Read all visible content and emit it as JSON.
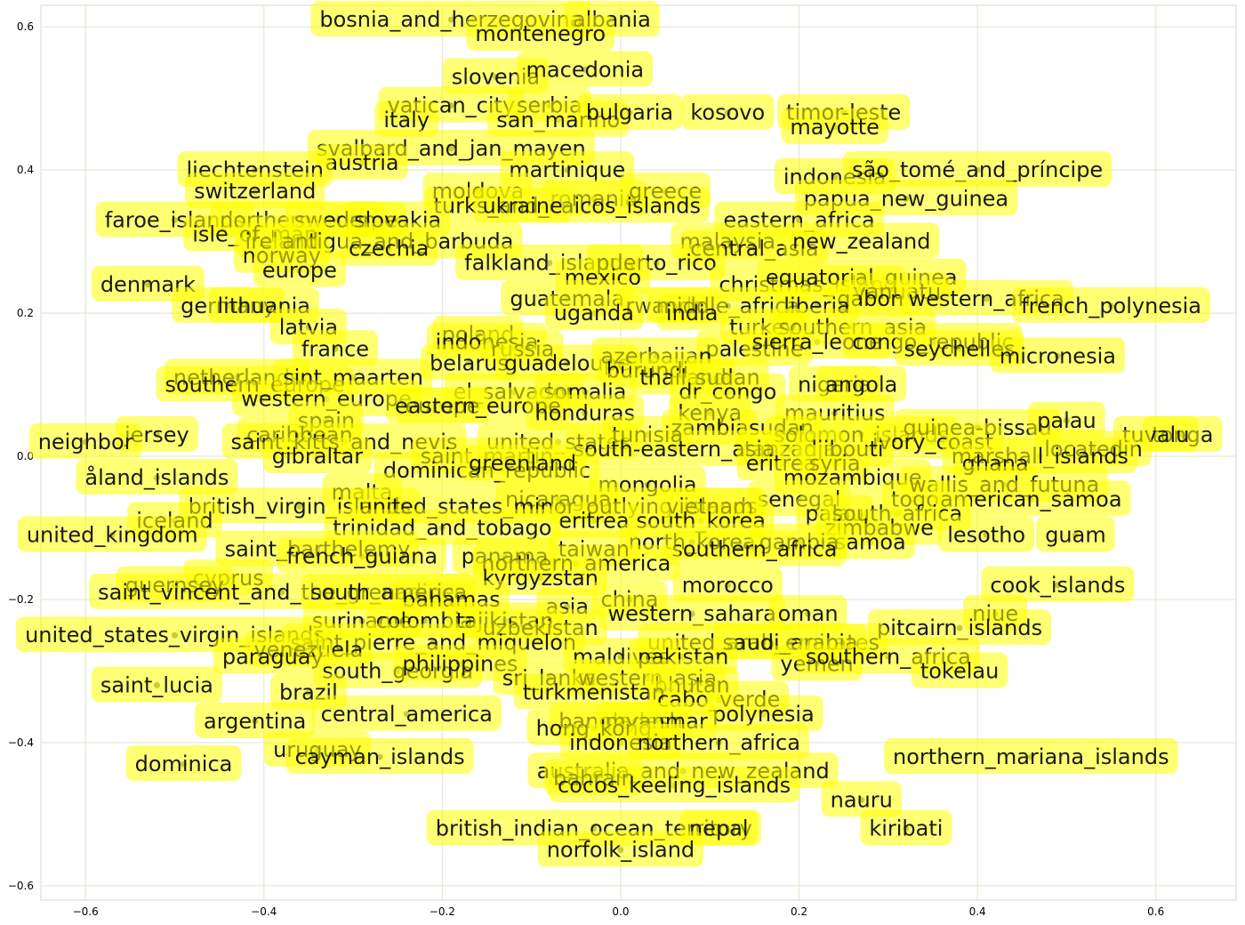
{
  "chart_data": {
    "type": "scatter",
    "title": "",
    "xlabel": "",
    "ylabel": "",
    "xlim": [
      -0.65,
      0.69
    ],
    "ylim": [
      -0.62,
      0.63
    ],
    "grid": true,
    "x_ticks": [
      "−0.6",
      "−0.4",
      "−0.2",
      "0.0",
      "0.2",
      "0.4",
      "0.6"
    ],
    "x_tick_values": [
      -0.6,
      -0.4,
      -0.2,
      0.0,
      0.2,
      0.4,
      0.6
    ],
    "y_ticks": [
      "0.6",
      "0.4",
      "0.2",
      "0.0",
      "−0.2",
      "−0.4",
      "−0.6"
    ],
    "y_tick_values": [
      0.6,
      0.4,
      0.2,
      0.0,
      -0.2,
      -0.4,
      -0.6
    ],
    "colors": {
      "label_box": "#ffff00",
      "point": "#5c5c3a",
      "grid": "#e3e3cf"
    },
    "points": [
      {
        "label": "bosnia_and_herzegovina",
        "x": -0.19,
        "y": 0.61
      },
      {
        "label": "albania",
        "x": -0.01,
        "y": 0.61
      },
      {
        "label": "montenegro",
        "x": -0.09,
        "y": 0.59
      },
      {
        "label": "slovenia",
        "x": -0.14,
        "y": 0.53
      },
      {
        "label": "macedonia",
        "x": -0.04,
        "y": 0.54
      },
      {
        "label": "vatican_city",
        "x": -0.19,
        "y": 0.49
      },
      {
        "label": "italy",
        "x": -0.24,
        "y": 0.47
      },
      {
        "label": "serbia",
        "x": -0.08,
        "y": 0.49
      },
      {
        "label": "san_marino",
        "x": -0.07,
        "y": 0.47
      },
      {
        "label": "bulgaria",
        "x": 0.01,
        "y": 0.48
      },
      {
        "label": "kosovo",
        "x": 0.12,
        "y": 0.48
      },
      {
        "label": "timor-leste",
        "x": 0.25,
        "y": 0.48
      },
      {
        "label": "mayotte",
        "x": 0.24,
        "y": 0.46
      },
      {
        "label": "svalbard_and_jan_mayen",
        "x": -0.19,
        "y": 0.43
      },
      {
        "label": "austria",
        "x": -0.29,
        "y": 0.41
      },
      {
        "label": "liechtenstein",
        "x": -0.41,
        "y": 0.4
      },
      {
        "label": "martinique",
        "x": -0.06,
        "y": 0.4
      },
      {
        "label": "switzerland",
        "x": -0.41,
        "y": 0.37
      },
      {
        "label": "moldova",
        "x": -0.16,
        "y": 0.37
      },
      {
        "label": "romania",
        "x": -0.03,
        "y": 0.36
      },
      {
        "label": "greece",
        "x": 0.05,
        "y": 0.37
      },
      {
        "label": "indonesia",
        "x": 0.24,
        "y": 0.39
      },
      {
        "label": "são_tomé_and_príncipe",
        "x": 0.4,
        "y": 0.4
      },
      {
        "label": "papua_new_guinea",
        "x": 0.32,
        "y": 0.36
      },
      {
        "label": "turks_and_caicos_islands",
        "x": -0.06,
        "y": 0.35
      },
      {
        "label": "ukraine",
        "x": -0.11,
        "y": 0.35
      },
      {
        "label": "faroe_islands",
        "x": -0.5,
        "y": 0.33
      },
      {
        "label": "northern_europe",
        "x": -0.35,
        "y": 0.33
      },
      {
        "label": "sweden",
        "x": -0.32,
        "y": 0.33
      },
      {
        "label": "slovakia",
        "x": -0.25,
        "y": 0.33
      },
      {
        "label": "eastern_africa",
        "x": 0.2,
        "y": 0.33
      },
      {
        "label": "isle_of_man",
        "x": -0.41,
        "y": 0.31
      },
      {
        "label": "ireland",
        "x": -0.38,
        "y": 0.3
      },
      {
        "label": "antigua_and_barbuda",
        "x": -0.25,
        "y": 0.3
      },
      {
        "label": "czechia",
        "x": -0.26,
        "y": 0.29
      },
      {
        "label": "malaysia",
        "x": 0.12,
        "y": 0.3
      },
      {
        "label": "central_asia",
        "x": 0.15,
        "y": 0.29
      },
      {
        "label": "new_zealand",
        "x": 0.27,
        "y": 0.3
      },
      {
        "label": "norway",
        "x": -0.38,
        "y": 0.28
      },
      {
        "label": "europe",
        "x": -0.36,
        "y": 0.26
      },
      {
        "label": "falkland_islands",
        "x": -0.08,
        "y": 0.27
      },
      {
        "label": "puerto_rico",
        "x": 0.04,
        "y": 0.27
      },
      {
        "label": "mexico",
        "x": -0.02,
        "y": 0.25
      },
      {
        "label": "denmark",
        "x": -0.53,
        "y": 0.24
      },
      {
        "label": "christmas_island",
        "x": 0.21,
        "y": 0.24
      },
      {
        "label": "equatorial_guinea",
        "x": 0.27,
        "y": 0.25
      },
      {
        "label": "vanuatu",
        "x": 0.31,
        "y": 0.23
      },
      {
        "label": "gabon",
        "x": 0.28,
        "y": 0.22
      },
      {
        "label": "western_africa",
        "x": 0.41,
        "y": 0.22
      },
      {
        "label": "french_polynesia",
        "x": 0.55,
        "y": 0.21
      },
      {
        "label": "germany",
        "x": -0.44,
        "y": 0.21
      },
      {
        "label": "lithuania",
        "x": -0.4,
        "y": 0.21
      },
      {
        "label": "guatemala",
        "x": -0.06,
        "y": 0.22
      },
      {
        "label": "rwanda",
        "x": 0.05,
        "y": 0.21
      },
      {
        "label": "middle_africa",
        "x": 0.12,
        "y": 0.21
      },
      {
        "label": "liberia",
        "x": 0.22,
        "y": 0.21
      },
      {
        "label": "uganda",
        "x": -0.03,
        "y": 0.2
      },
      {
        "label": "india",
        "x": 0.08,
        "y": 0.2
      },
      {
        "label": "turkey",
        "x": 0.16,
        "y": 0.18
      },
      {
        "label": "southern_asia",
        "x": 0.26,
        "y": 0.18
      },
      {
        "label": "latvia",
        "x": -0.35,
        "y": 0.18
      },
      {
        "label": "poland",
        "x": -0.16,
        "y": 0.17
      },
      {
        "label": "indonesia",
        "x": -0.15,
        "y": 0.16
      },
      {
        "label": "russia",
        "x": -0.11,
        "y": 0.15
      },
      {
        "label": "palestine",
        "x": 0.15,
        "y": 0.15
      },
      {
        "label": "sierra_leone",
        "x": 0.22,
        "y": 0.16
      },
      {
        "label": "congo_republic",
        "x": 0.35,
        "y": 0.16
      },
      {
        "label": "france",
        "x": -0.32,
        "y": 0.15
      },
      {
        "label": "seychelles",
        "x": 0.38,
        "y": 0.15
      },
      {
        "label": "micronesia",
        "x": 0.49,
        "y": 0.14
      },
      {
        "label": "belarus",
        "x": -0.17,
        "y": 0.13
      },
      {
        "label": "guadeloupe",
        "x": -0.06,
        "y": 0.13
      },
      {
        "label": "azerbaijan",
        "x": 0.04,
        "y": 0.14
      },
      {
        "label": "burundi",
        "x": 0.03,
        "y": 0.12
      },
      {
        "label": "thailand",
        "x": 0.07,
        "y": 0.11
      },
      {
        "label": "sudan",
        "x": 0.12,
        "y": 0.11
      },
      {
        "label": "netherlands",
        "x": -0.43,
        "y": 0.11
      },
      {
        "label": "southern_europe",
        "x": -0.41,
        "y": 0.1
      },
      {
        "label": "sint_maarten",
        "x": -0.3,
        "y": 0.11
      },
      {
        "label": "el_salvador",
        "x": -0.12,
        "y": 0.09
      },
      {
        "label": "somalia",
        "x": -0.04,
        "y": 0.09
      },
      {
        "label": "dr_congo",
        "x": 0.12,
        "y": 0.09
      },
      {
        "label": "nigeria",
        "x": 0.24,
        "y": 0.1
      },
      {
        "label": "angola",
        "x": 0.27,
        "y": 0.1
      },
      {
        "label": "western_europe",
        "x": -0.33,
        "y": 0.08
      },
      {
        "label": "europe",
        "x": -0.2,
        "y": 0.07
      },
      {
        "label": "eastern_europe",
        "x": -0.16,
        "y": 0.07
      },
      {
        "label": "honduras",
        "x": -0.04,
        "y": 0.06
      },
      {
        "label": "kenya",
        "x": 0.1,
        "y": 0.06
      },
      {
        "label": "mauritius",
        "x": 0.24,
        "y": 0.06
      },
      {
        "label": "spain",
        "x": -0.33,
        "y": 0.05
      },
      {
        "label": "zambia",
        "x": 0.1,
        "y": 0.04
      },
      {
        "label": "sudan",
        "x": 0.18,
        "y": 0.04
      },
      {
        "label": "solomon_islands",
        "x": 0.27,
        "y": 0.03
      },
      {
        "label": "guinea-bissau",
        "x": 0.4,
        "y": 0.04
      },
      {
        "label": "palau",
        "x": 0.5,
        "y": 0.05
      },
      {
        "label": "tonga",
        "x": 0.63,
        "y": 0.03
      },
      {
        "label": "tuvalu",
        "x": 0.6,
        "y": 0.03
      },
      {
        "label": "jersey",
        "x": -0.52,
        "y": 0.03
      },
      {
        "label": "caribbean",
        "x": -0.36,
        "y": 0.03
      },
      {
        "label": "saint_kitts_and_nevis",
        "x": -0.31,
        "y": 0.02
      },
      {
        "label": "united_states",
        "x": -0.07,
        "y": 0.02
      },
      {
        "label": "tunisia",
        "x": 0.03,
        "y": 0.03
      },
      {
        "label": "tanzania",
        "x": 0.19,
        "y": 0.01
      },
      {
        "label": "ivory_coast",
        "x": 0.35,
        "y": 0.02
      },
      {
        "label": "neighbor",
        "x": -0.6,
        "y": 0.02
      },
      {
        "label": "gibraltar",
        "x": -0.34,
        "y": 0.0
      },
      {
        "label": "saint_martin",
        "x": -0.15,
        "y": 0.0
      },
      {
        "label": "south-eastern_asia",
        "x": 0.06,
        "y": 0.01
      },
      {
        "label": "djibouti",
        "x": 0.25,
        "y": 0.01
      },
      {
        "label": "locatedin",
        "x": 0.53,
        "y": 0.01
      },
      {
        "label": "marshall_islands",
        "x": 0.47,
        "y": 0.0
      },
      {
        "label": "åland_islands",
        "x": -0.52,
        "y": -0.03
      },
      {
        "label": "dominican_republic",
        "x": -0.15,
        "y": -0.02
      },
      {
        "label": "greenland",
        "x": -0.11,
        "y": -0.01
      },
      {
        "label": "eritrea",
        "x": 0.18,
        "y": -0.01
      },
      {
        "label": "syria",
        "x": 0.24,
        "y": -0.01
      },
      {
        "label": "mozambique",
        "x": 0.26,
        "y": -0.03
      },
      {
        "label": "ghana",
        "x": 0.42,
        "y": -0.01
      },
      {
        "label": "mongolia",
        "x": 0.03,
        "y": -0.04
      },
      {
        "label": "wallis_and_futuna",
        "x": 0.43,
        "y": -0.04
      },
      {
        "label": "malta",
        "x": -0.29,
        "y": -0.05
      },
      {
        "label": "nicaragua",
        "x": -0.07,
        "y": -0.06
      },
      {
        "label": "senegal",
        "x": 0.2,
        "y": -0.06
      },
      {
        "label": "togo",
        "x": 0.33,
        "y": -0.06
      },
      {
        "label": "american_samoa",
        "x": 0.46,
        "y": -0.06
      },
      {
        "label": "british_virgin_islands",
        "x": -0.36,
        "y": -0.07
      },
      {
        "label": "united_states_minor_outlying_islands",
        "x": -0.07,
        "y": -0.07
      },
      {
        "label": "vietnam",
        "x": 0.1,
        "y": -0.07
      },
      {
        "label": "palau",
        "x": 0.24,
        "y": -0.08
      },
      {
        "label": "south_africa",
        "x": 0.31,
        "y": -0.08
      },
      {
        "label": "iceland",
        "x": -0.5,
        "y": -0.09
      },
      {
        "label": "eritrea",
        "x": -0.03,
        "y": -0.09
      },
      {
        "label": "south_korea",
        "x": 0.09,
        "y": -0.09
      },
      {
        "label": "zimbabwe",
        "x": 0.29,
        "y": -0.1
      },
      {
        "label": "lesotho",
        "x": 0.41,
        "y": -0.11
      },
      {
        "label": "guam",
        "x": 0.51,
        "y": -0.11
      },
      {
        "label": "trinidad_and_tobago",
        "x": -0.2,
        "y": -0.1
      },
      {
        "label": "united_kingdom",
        "x": -0.57,
        "y": -0.11
      },
      {
        "label": "north_korea",
        "x": 0.08,
        "y": -0.12
      },
      {
        "label": "samoa",
        "x": 0.28,
        "y": -0.12
      },
      {
        "label": "gambia",
        "x": 0.2,
        "y": -0.12
      },
      {
        "label": "saint_barthelemy",
        "x": -0.34,
        "y": -0.13
      },
      {
        "label": "french_guiana",
        "x": -0.29,
        "y": -0.14
      },
      {
        "label": "panama",
        "x": -0.13,
        "y": -0.14
      },
      {
        "label": "taiwan",
        "x": -0.03,
        "y": -0.13
      },
      {
        "label": "southern_africa",
        "x": 0.15,
        "y": -0.13
      },
      {
        "label": "northern_america",
        "x": -0.05,
        "y": -0.15
      },
      {
        "label": "cyprus",
        "x": -0.44,
        "y": -0.17
      },
      {
        "label": "kyrgyzstan",
        "x": -0.09,
        "y": -0.17
      },
      {
        "label": "morocco",
        "x": 0.12,
        "y": -0.18
      },
      {
        "label": "guernsey",
        "x": -0.5,
        "y": -0.18
      },
      {
        "label": "saint_vincent_and_the_grenadines",
        "x": -0.38,
        "y": -0.19
      },
      {
        "label": "south_america",
        "x": -0.26,
        "y": -0.19
      },
      {
        "label": "bahamas",
        "x": -0.19,
        "y": -0.2
      },
      {
        "label": "china",
        "x": 0.01,
        "y": -0.2
      },
      {
        "label": "cook_islands",
        "x": 0.49,
        "y": -0.18
      },
      {
        "label": "asia",
        "x": -0.06,
        "y": -0.21
      },
      {
        "label": "western_sahara",
        "x": 0.08,
        "y": -0.22
      },
      {
        "label": "oman",
        "x": 0.21,
        "y": -0.22
      },
      {
        "label": "niue",
        "x": 0.42,
        "y": -0.22
      },
      {
        "label": "suriname",
        "x": -0.29,
        "y": -0.23
      },
      {
        "label": "colombia",
        "x": -0.22,
        "y": -0.23
      },
      {
        "label": "tajikistan",
        "x": -0.13,
        "y": -0.23
      },
      {
        "label": "uzbekistan",
        "x": -0.09,
        "y": -0.24
      },
      {
        "label": "pitcairn_islands",
        "x": 0.38,
        "y": -0.24
      },
      {
        "label": "united_states_virgin_islands",
        "x": -0.5,
        "y": -0.25
      },
      {
        "label": "saint_pierre_and_miquelon",
        "x": -0.21,
        "y": -0.26
      },
      {
        "label": "united_arab_emirates",
        "x": 0.16,
        "y": -0.26
      },
      {
        "label": "saudi_arabia",
        "x": 0.19,
        "y": -0.26
      },
      {
        "label": "venezuela",
        "x": -0.35,
        "y": -0.27
      },
      {
        "label": "paraguay",
        "x": -0.39,
        "y": -0.28
      },
      {
        "label": "maldives",
        "x": 0.0,
        "y": -0.28
      },
      {
        "label": "pakistan",
        "x": 0.07,
        "y": -0.28
      },
      {
        "label": "yemen",
        "x": 0.22,
        "y": -0.29
      },
      {
        "label": "southern_africa",
        "x": 0.3,
        "y": -0.28
      },
      {
        "label": "south_georgia",
        "x": -0.25,
        "y": -0.3
      },
      {
        "label": "philippines",
        "x": -0.18,
        "y": -0.29
      },
      {
        "label": "tokelau",
        "x": 0.38,
        "y": -0.3
      },
      {
        "label": "saint_lucia",
        "x": -0.52,
        "y": -0.32
      },
      {
        "label": "sri_lanka",
        "x": -0.08,
        "y": -0.31
      },
      {
        "label": "western_asia",
        "x": 0.03,
        "y": -0.31
      },
      {
        "label": "bhutan",
        "x": 0.08,
        "y": -0.32
      },
      {
        "label": "turkmenistan",
        "x": -0.03,
        "y": -0.33
      },
      {
        "label": "brazil",
        "x": -0.35,
        "y": -0.33
      },
      {
        "label": "cabo_verde",
        "x": 0.11,
        "y": -0.34
      },
      {
        "label": "argentina",
        "x": -0.41,
        "y": -0.37
      },
      {
        "label": "central_america",
        "x": -0.24,
        "y": -0.36
      },
      {
        "label": "polynesia",
        "x": 0.16,
        "y": -0.36
      },
      {
        "label": "bangladesh",
        "x": 0.0,
        "y": -0.37
      },
      {
        "label": "myanmar",
        "x": 0.04,
        "y": -0.37
      },
      {
        "label": "hong_kong",
        "x": -0.03,
        "y": -0.38
      },
      {
        "label": "indonesia",
        "x": 0.0,
        "y": -0.4
      },
      {
        "label": "northern_africa",
        "x": 0.11,
        "y": -0.4
      },
      {
        "label": "northern_mariana_islands",
        "x": 0.46,
        "y": -0.42
      },
      {
        "label": "dominica",
        "x": -0.49,
        "y": -0.43
      },
      {
        "label": "uruguay",
        "x": -0.34,
        "y": -0.41
      },
      {
        "label": "cayman_islands",
        "x": -0.27,
        "y": -0.42
      },
      {
        "label": "australia_and_new_zealand",
        "x": 0.07,
        "y": -0.44
      },
      {
        "label": "bahrain",
        "x": -0.03,
        "y": -0.45
      },
      {
        "label": "cocos_keeling_islands",
        "x": 0.06,
        "y": -0.46
      },
      {
        "label": "nauru",
        "x": 0.27,
        "y": -0.48
      },
      {
        "label": "kiribati",
        "x": 0.32,
        "y": -0.52
      },
      {
        "label": "british_indian_ocean_territory",
        "x": -0.03,
        "y": -0.52
      },
      {
        "label": "nepal",
        "x": 0.11,
        "y": -0.52
      },
      {
        "label": "norfolk_island",
        "x": 0.0,
        "y": -0.55
      }
    ]
  }
}
